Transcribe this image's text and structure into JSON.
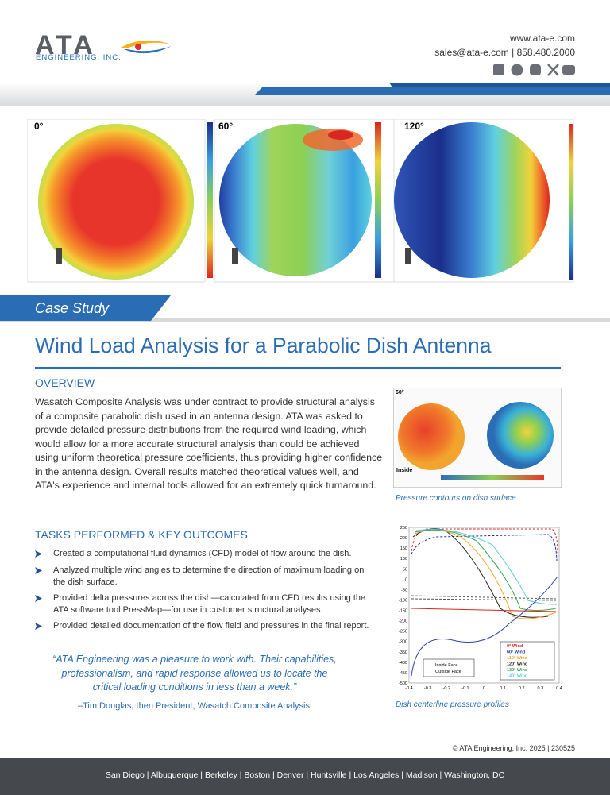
{
  "header": {
    "logo": "ATA",
    "logo_sub": "ENGINEERING, INC.",
    "website": "www.ata-e.com",
    "contact": "sales@ata-e.com | 858.480.2000"
  },
  "hero": {
    "labels": [
      "0°",
      "60°",
      "120°"
    ]
  },
  "banner": "Case Study",
  "title": "Wind Load Analysis for a Parabolic Dish Antenna",
  "overview": {
    "heading": "OVERVIEW",
    "text": "Wasatch Composite Analysis was under contract to provide structural analysis of a composite parabolic dish used in an antenna design. ATA was asked to provide detailed pressure distributions from the required wind loading, which would allow for a more accurate structural analysis than could be achieved using uniform theoretical pressure coefficients, thus providing higher confidence in the antenna design. Overall results matched theoretical values well, and ATA's experience and internal tools allowed for an extremely quick turnaround."
  },
  "figure1": {
    "label": "60°",
    "inside": "Inside",
    "caption": "Pressure contours on dish surface"
  },
  "tasks": {
    "heading": "TASKS PERFORMED & KEY OUTCOMES",
    "items": [
      "Created a computational fluid dynamics (CFD) model of flow around the dish.",
      "Analyzed multiple wind angles to determine the direction of maximum loading on the dish surface.",
      "Provided delta pressures across the dish—calculated from CFD results using the ATA software tool PressMap—for use in customer structural analyses.",
      "Provided detailed documentation of the flow field and pressures in the final report."
    ]
  },
  "quote": {
    "text": "“ATA Engineering was a pleasure to work with. Their capabilities, professionalism, and rapid response allowed us to locate the critical loading conditions in less than a week.”",
    "attribution": "–Tim Douglas, then President, Wasatch Composite Analysis"
  },
  "figure2": {
    "yticks": [
      "250",
      "200",
      "150",
      "100",
      "50",
      "0",
      "-50",
      "-100",
      "-150",
      "-200",
      "-250",
      "-300",
      "-350",
      "-400",
      "-450",
      "-500"
    ],
    "xticks": [
      "-0.4",
      "-0.3",
      "-0.2",
      "-0.1",
      "0",
      "0.1",
      "0.2",
      "0.3",
      "0.4"
    ],
    "legend": [
      "0° Wind",
      "60° Wind",
      "110° Wind",
      "120° Wind",
      "130° Wind",
      "140° Wind"
    ],
    "face_legend": [
      "Inside Face",
      "Outside Face"
    ],
    "caption": "Dish centerline pressure profiles"
  },
  "copyright": "© ATA Engineering, Inc. 2025 | 230525",
  "footer": "San Diego | Albuquerque | Berkeley | Boston | Denver | Huntsville | Los Angeles | Madison | Washington, DC"
}
